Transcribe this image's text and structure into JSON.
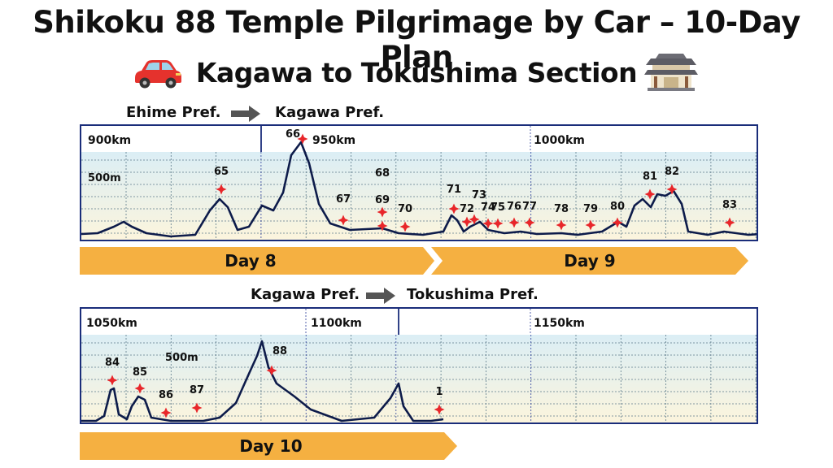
{
  "title": "Shikoku 88 Temple Pilgrimage by Car – 10-Day Plan",
  "subtitle": "Kagawa to Tokushima Section",
  "icons": {
    "left": "car-icon",
    "right": "temple-icon"
  },
  "colors": {
    "frame": "#1a2d7a",
    "profile": "#0d1b4a",
    "marker": "#e8262a",
    "daybar": "#f5b041",
    "sky": "#dbeef5",
    "ground": "#fdf5dc"
  },
  "section1": {
    "pref_from": "Ehime Pref.",
    "pref_to": "Kagawa Pref.",
    "km_labels": [
      "900km",
      "950km",
      "1000km"
    ],
    "elev_label": "500m",
    "days": [
      "Day 8",
      "Day 9"
    ],
    "temples": [
      "65",
      "66",
      "67",
      "68",
      "69",
      "70",
      "71",
      "72",
      "73",
      "74",
      "75",
      "76",
      "77",
      "78",
      "79",
      "80",
      "81",
      "82",
      "83"
    ]
  },
  "section2": {
    "pref_from": "Kagawa Pref.",
    "pref_to": "Tokushima Pref.",
    "km_labels": [
      "1050km",
      "1100km",
      "1150km"
    ],
    "elev_label": "500m",
    "days": [
      "Day 10"
    ],
    "temples": [
      "84",
      "85",
      "86",
      "87",
      "88",
      "1"
    ]
  }
}
